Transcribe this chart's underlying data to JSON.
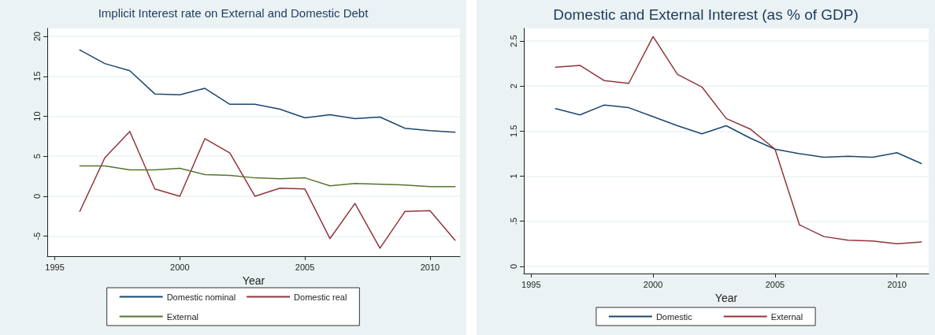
{
  "chart_data": [
    {
      "type": "line",
      "title": "Implicit Interest rate on External and Domestic Debt",
      "xlabel": "Year",
      "x": [
        1996,
        1997,
        1998,
        1999,
        2000,
        2001,
        2002,
        2003,
        2004,
        2005,
        2006,
        2007,
        2008,
        2009,
        2010,
        2011
      ],
      "xlim": [
        1994.7,
        2011.2
      ],
      "xticks": [
        1995,
        2000,
        2005,
        2010
      ],
      "ylim": [
        -7.5,
        21
      ],
      "yticks": [
        -5,
        0,
        5,
        10,
        15,
        20
      ],
      "grid": "y",
      "legend": "bottom",
      "marker": "none",
      "line_style": "solid",
      "series": [
        {
          "name": "Domestic nominal",
          "color": "#1a476f",
          "values": [
            18.3,
            16.6,
            15.7,
            12.8,
            12.7,
            13.5,
            11.5,
            11.5,
            10.9,
            9.8,
            10.2,
            9.7,
            9.9,
            8.5,
            8.2,
            8.0
          ]
        },
        {
          "name": "Domestic real",
          "color": "#90353b",
          "values": [
            -1.9,
            4.8,
            8.1,
            0.9,
            0,
            7.2,
            5.4,
            0,
            1.0,
            0.9,
            -5.3,
            -0.9,
            -6.5,
            -1.9,
            -1.8,
            -5.5
          ]
        },
        {
          "name": "External",
          "color": "#55752f",
          "values": [
            3.8,
            3.8,
            3.3,
            3.3,
            3.5,
            2.7,
            2.6,
            2.3,
            2.2,
            2.3,
            1.3,
            1.6,
            1.5,
            1.4,
            1.2,
            1.2
          ]
        }
      ]
    },
    {
      "type": "line",
      "title": "Domestic and External Interest (as % of GDP)",
      "xlabel": "Year",
      "x": [
        1996,
        1997,
        1998,
        1999,
        2000,
        2001,
        2002,
        2003,
        2004,
        2005,
        2006,
        2007,
        2008,
        2009,
        2010,
        2011
      ],
      "xlim": [
        1994.7,
        2011.3
      ],
      "xticks": [
        1995,
        2000,
        2005,
        2010
      ],
      "ylim": [
        -0.08,
        2.64
      ],
      "yticks": [
        0,
        {
          "value": 0.5,
          "label": ".5"
        },
        1,
        1.5,
        2,
        2.5
      ],
      "grid": "y",
      "legend": "bottom",
      "marker": "none",
      "line_style": "solid",
      "series": [
        {
          "name": "Domestic",
          "color": "#1a476f",
          "values": [
            1.75,
            1.68,
            1.79,
            1.76,
            1.66,
            1.56,
            1.47,
            1.56,
            1.42,
            1.3,
            1.25,
            1.21,
            1.22,
            1.21,
            1.26,
            1.14
          ]
        },
        {
          "name": "External",
          "color": "#90353b",
          "values": [
            2.21,
            2.23,
            2.06,
            2.03,
            2.55,
            2.13,
            1.99,
            1.64,
            1.52,
            1.3,
            0.46,
            0.33,
            0.29,
            0.28,
            0.25,
            0.27
          ]
        }
      ]
    }
  ]
}
